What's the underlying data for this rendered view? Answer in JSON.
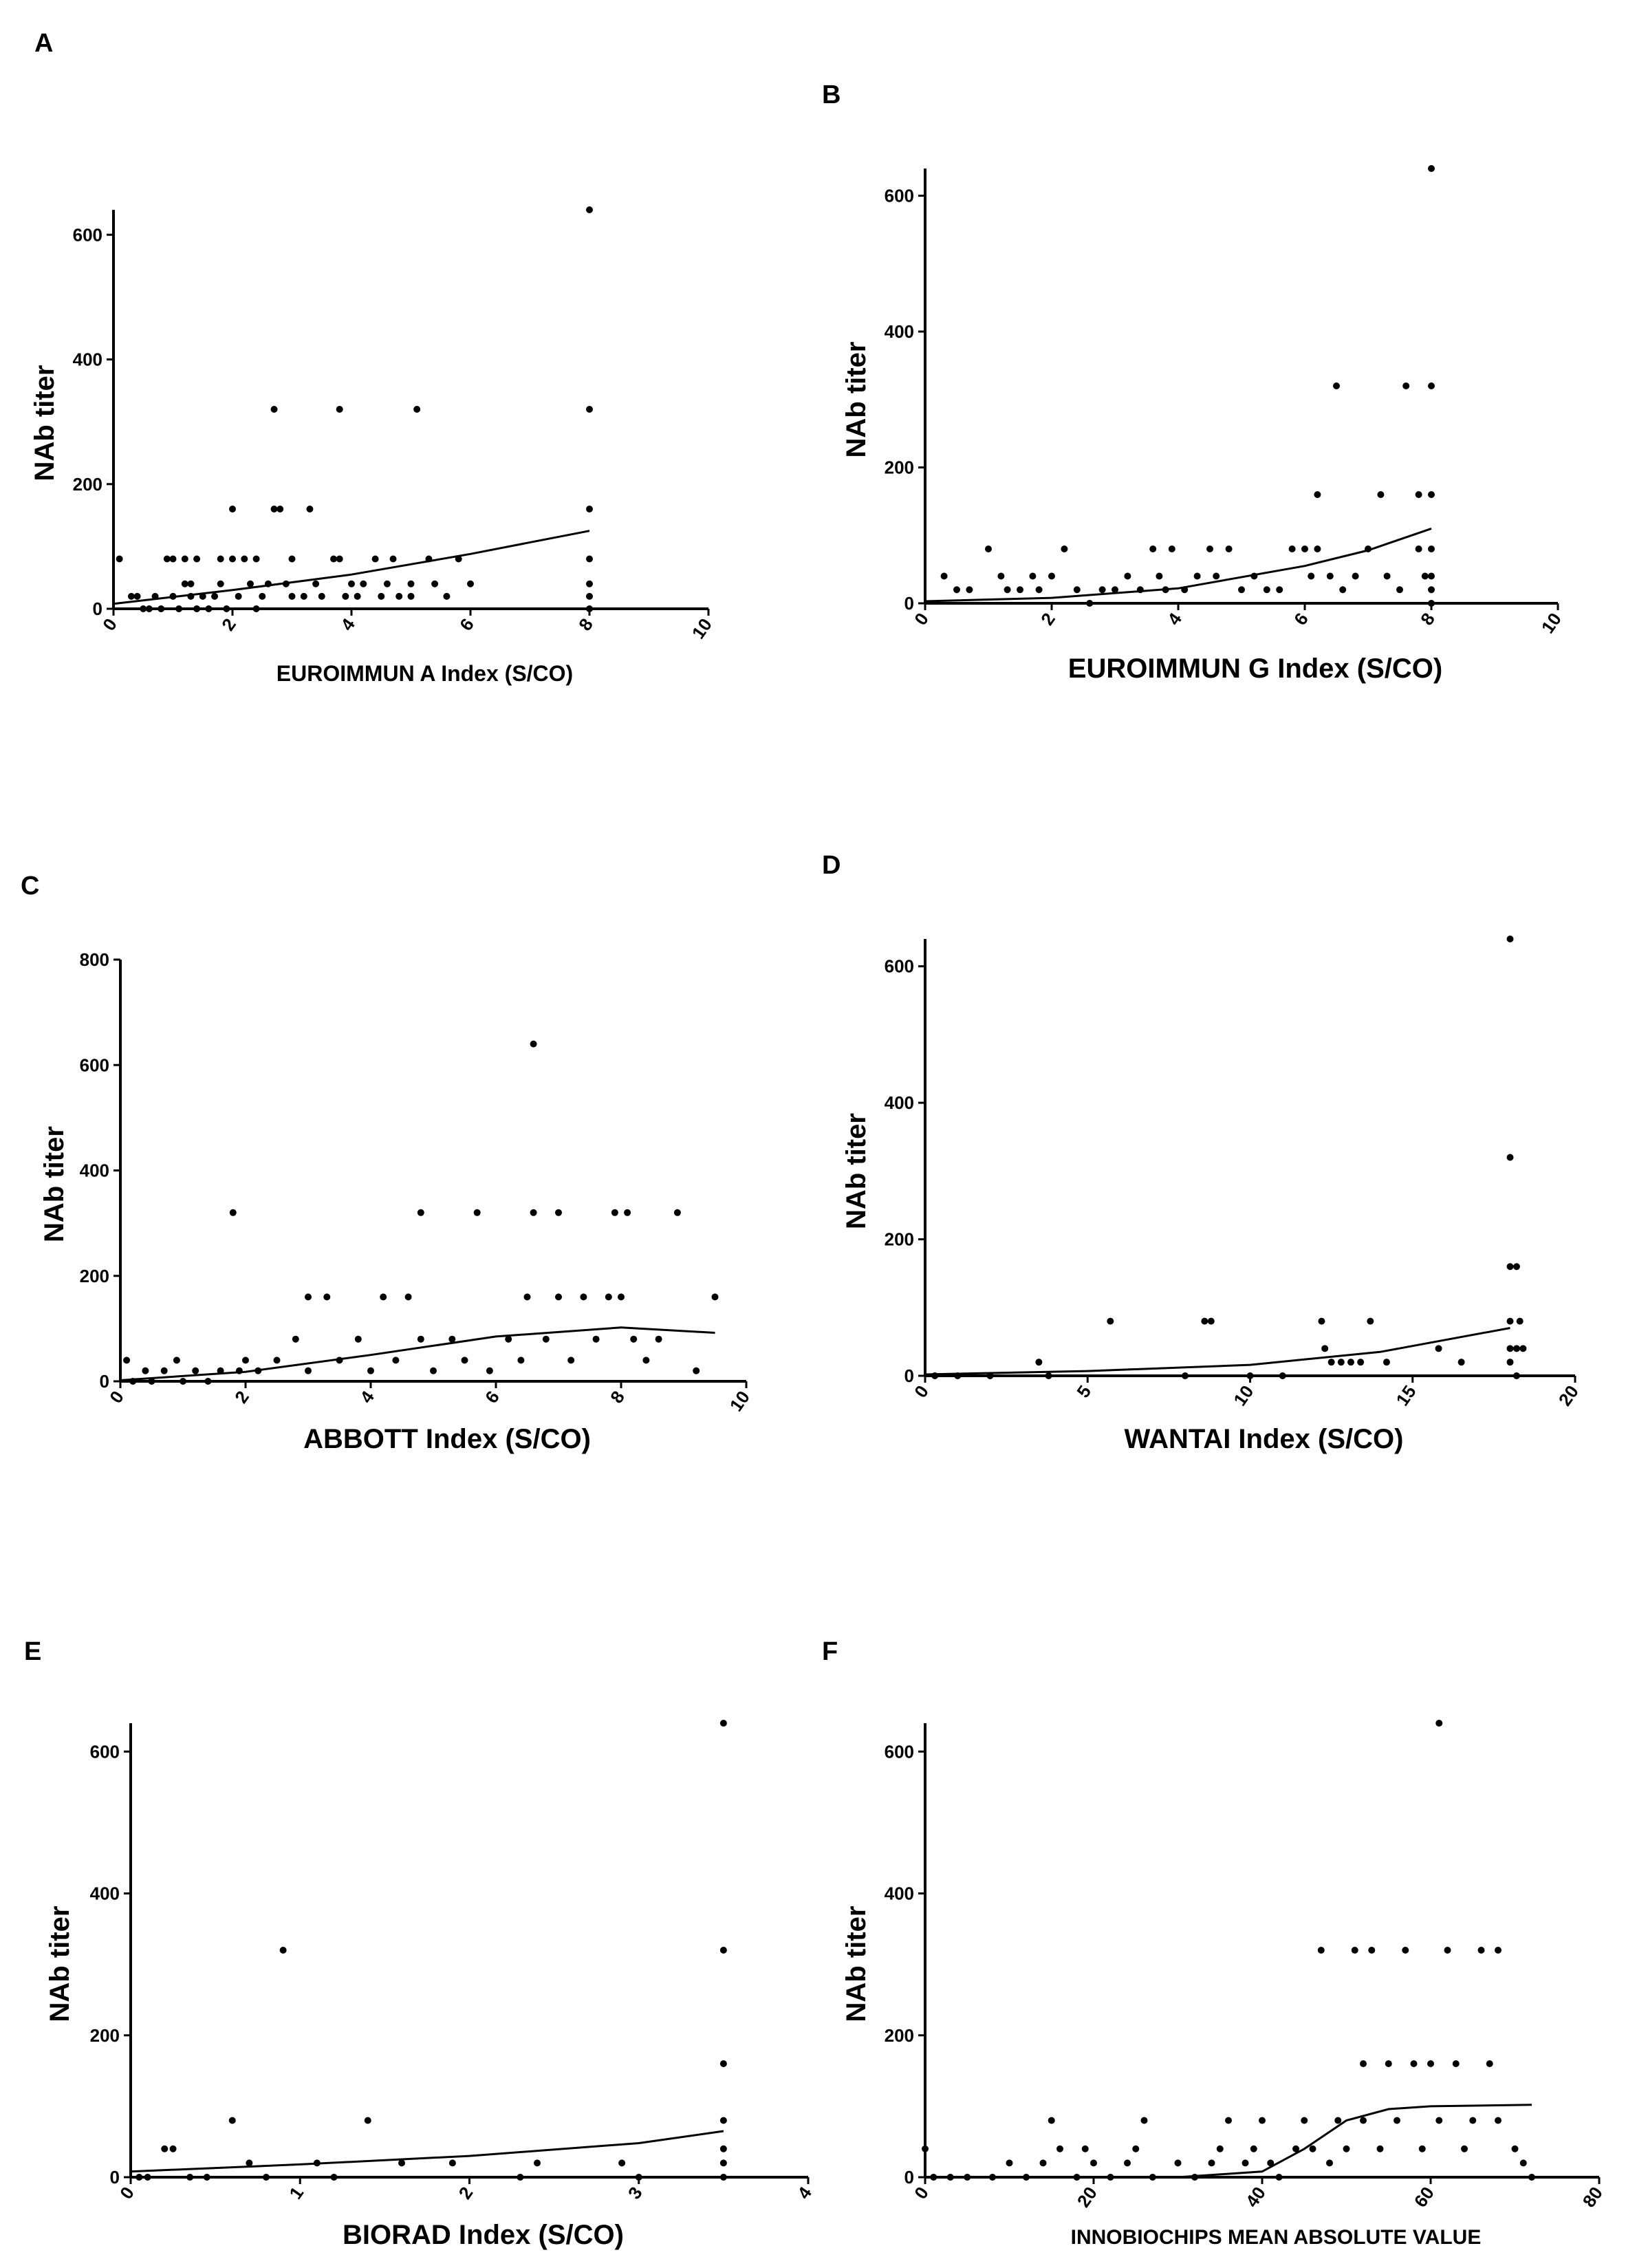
{
  "chart_data": [
    {
      "panel": "A",
      "type": "scatter",
      "xlabel": "EUROIMMUN A Index (S/CO)",
      "ylabel": "NAb titer",
      "xlim": [
        0,
        10
      ],
      "ylim": [
        0,
        640
      ],
      "xticks": [
        0,
        2,
        4,
        6,
        8,
        10
      ],
      "yticks": [
        0,
        200,
        400,
        600
      ],
      "points": [
        [
          0.1,
          80
        ],
        [
          0.3,
          20
        ],
        [
          0.4,
          20
        ],
        [
          0.5,
          0
        ],
        [
          0.6,
          0
        ],
        [
          0.7,
          20
        ],
        [
          0.8,
          0
        ],
        [
          0.9,
          80
        ],
        [
          1.0,
          80
        ],
        [
          1.0,
          20
        ],
        [
          1.1,
          0
        ],
        [
          1.2,
          80
        ],
        [
          1.2,
          40
        ],
        [
          1.3,
          20
        ],
        [
          1.3,
          40
        ],
        [
          1.4,
          0
        ],
        [
          1.4,
          80
        ],
        [
          1.5,
          20
        ],
        [
          1.6,
          0
        ],
        [
          1.7,
          20
        ],
        [
          1.8,
          80
        ],
        [
          1.8,
          40
        ],
        [
          1.9,
          0
        ],
        [
          2.0,
          80
        ],
        [
          2.0,
          160
        ],
        [
          2.1,
          20
        ],
        [
          2.2,
          80
        ],
        [
          2.3,
          40
        ],
        [
          2.4,
          0
        ],
        [
          2.4,
          80
        ],
        [
          2.5,
          20
        ],
        [
          2.6,
          40
        ],
        [
          2.7,
          320
        ],
        [
          2.7,
          160
        ],
        [
          2.8,
          160
        ],
        [
          2.9,
          40
        ],
        [
          3.0,
          80
        ],
        [
          3.0,
          20
        ],
        [
          3.2,
          20
        ],
        [
          3.3,
          160
        ],
        [
          3.4,
          40
        ],
        [
          3.5,
          20
        ],
        [
          3.7,
          80
        ],
        [
          3.8,
          320
        ],
        [
          3.8,
          80
        ],
        [
          3.9,
          20
        ],
        [
          4.0,
          40
        ],
        [
          4.1,
          20
        ],
        [
          4.2,
          40
        ],
        [
          4.4,
          80
        ],
        [
          4.5,
          20
        ],
        [
          4.6,
          40
        ],
        [
          4.7,
          80
        ],
        [
          4.8,
          20
        ],
        [
          5.0,
          40
        ],
        [
          5.0,
          20
        ],
        [
          5.1,
          320
        ],
        [
          5.3,
          80
        ],
        [
          5.4,
          40
        ],
        [
          5.6,
          20
        ],
        [
          5.8,
          80
        ],
        [
          6.0,
          40
        ],
        [
          8.0,
          640
        ],
        [
          8.0,
          320
        ],
        [
          8.0,
          160
        ],
        [
          8.0,
          80
        ],
        [
          8.0,
          40
        ],
        [
          8.0,
          20
        ],
        [
          8.0,
          0
        ]
      ],
      "fit_curve": [
        [
          0,
          8
        ],
        [
          2,
          30
        ],
        [
          4,
          55
        ],
        [
          6,
          88
        ],
        [
          8,
          125
        ]
      ]
    },
    {
      "panel": "B",
      "type": "scatter",
      "xlabel": "EUROIMMUN G Index (S/CO)",
      "ylabel": "NAb titer",
      "xlim": [
        0,
        10
      ],
      "ylim": [
        0,
        640
      ],
      "xticks": [
        0,
        2,
        4,
        6,
        8,
        10
      ],
      "yticks": [
        0,
        200,
        400,
        600
      ],
      "points": [
        [
          0.3,
          40
        ],
        [
          0.5,
          20
        ],
        [
          0.7,
          20
        ],
        [
          1.0,
          80
        ],
        [
          1.2,
          40
        ],
        [
          1.3,
          20
        ],
        [
          1.5,
          20
        ],
        [
          1.7,
          40
        ],
        [
          1.8,
          20
        ],
        [
          2.0,
          40
        ],
        [
          2.2,
          80
        ],
        [
          2.4,
          20
        ],
        [
          2.6,
          0
        ],
        [
          2.8,
          20
        ],
        [
          3.0,
          20
        ],
        [
          3.2,
          40
        ],
        [
          3.4,
          20
        ],
        [
          3.6,
          80
        ],
        [
          3.7,
          40
        ],
        [
          3.8,
          20
        ],
        [
          3.9,
          80
        ],
        [
          4.1,
          20
        ],
        [
          4.3,
          40
        ],
        [
          4.5,
          80
        ],
        [
          4.6,
          40
        ],
        [
          4.8,
          80
        ],
        [
          5.0,
          20
        ],
        [
          5.2,
          40
        ],
        [
          5.4,
          20
        ],
        [
          5.6,
          20
        ],
        [
          5.8,
          80
        ],
        [
          6.0,
          80
        ],
        [
          6.1,
          40
        ],
        [
          6.2,
          160
        ],
        [
          6.2,
          80
        ],
        [
          6.4,
          40
        ],
        [
          6.5,
          320
        ],
        [
          6.6,
          20
        ],
        [
          6.8,
          40
        ],
        [
          7.0,
          80
        ],
        [
          7.2,
          160
        ],
        [
          7.3,
          40
        ],
        [
          7.5,
          20
        ],
        [
          7.6,
          320
        ],
        [
          7.8,
          160
        ],
        [
          7.8,
          80
        ],
        [
          7.9,
          40
        ],
        [
          8.0,
          640
        ],
        [
          8.0,
          320
        ],
        [
          8.0,
          160
        ],
        [
          8.0,
          80
        ],
        [
          8.0,
          40
        ],
        [
          8.0,
          20
        ],
        [
          8.0,
          0
        ]
      ],
      "fit_curve": [
        [
          0,
          3
        ],
        [
          2,
          8
        ],
        [
          4,
          22
        ],
        [
          6,
          55
        ],
        [
          7,
          78
        ],
        [
          8,
          110
        ]
      ]
    },
    {
      "panel": "C",
      "type": "scatter",
      "xlabel": "ABBOTT Index (S/CO)",
      "ylabel": "NAb titer",
      "xlim": [
        0,
        10
      ],
      "ylim": [
        0,
        800
      ],
      "xticks": [
        0,
        2,
        4,
        6,
        8,
        10
      ],
      "yticks": [
        0,
        200,
        400,
        600,
        800
      ],
      "points": [
        [
          0.1,
          40
        ],
        [
          0.2,
          0
        ],
        [
          0.4,
          20
        ],
        [
          0.5,
          0
        ],
        [
          0.7,
          20
        ],
        [
          0.9,
          40
        ],
        [
          1.0,
          0
        ],
        [
          1.2,
          20
        ],
        [
          1.4,
          0
        ],
        [
          1.6,
          20
        ],
        [
          1.8,
          320
        ],
        [
          1.9,
          20
        ],
        [
          2.0,
          40
        ],
        [
          2.2,
          20
        ],
        [
          2.5,
          40
        ],
        [
          2.8,
          80
        ],
        [
          3.0,
          160
        ],
        [
          3.0,
          20
        ],
        [
          3.3,
          160
        ],
        [
          3.5,
          40
        ],
        [
          3.8,
          80
        ],
        [
          4.0,
          20
        ],
        [
          4.2,
          160
        ],
        [
          4.4,
          40
        ],
        [
          4.6,
          160
        ],
        [
          4.8,
          320
        ],
        [
          4.8,
          80
        ],
        [
          5.0,
          20
        ],
        [
          5.3,
          80
        ],
        [
          5.5,
          40
        ],
        [
          5.7,
          320
        ],
        [
          5.9,
          20
        ],
        [
          6.2,
          80
        ],
        [
          6.4,
          40
        ],
        [
          6.5,
          160
        ],
        [
          6.6,
          640
        ],
        [
          6.6,
          320
        ],
        [
          6.8,
          80
        ],
        [
          7.0,
          320
        ],
        [
          7.0,
          160
        ],
        [
          7.2,
          40
        ],
        [
          7.4,
          160
        ],
        [
          7.6,
          80
        ],
        [
          7.8,
          160
        ],
        [
          7.9,
          320
        ],
        [
          8.1,
          320
        ],
        [
          8.0,
          160
        ],
        [
          8.2,
          80
        ],
        [
          8.4,
          40
        ],
        [
          8.6,
          80
        ],
        [
          8.9,
          320
        ],
        [
          9.2,
          20
        ],
        [
          9.5,
          160
        ]
      ],
      "fit_curve": [
        [
          0,
          2
        ],
        [
          2,
          18
        ],
        [
          4,
          50
        ],
        [
          6,
          85
        ],
        [
          8,
          102
        ],
        [
          9.5,
          92
        ]
      ]
    },
    {
      "panel": "D",
      "type": "scatter",
      "xlabel": "WANTAI Index (S/CO)",
      "ylabel": "NAb titer",
      "xlim": [
        0,
        20
      ],
      "ylim": [
        0,
        640
      ],
      "xticks": [
        0,
        5,
        10,
        15,
        20
      ],
      "yticks": [
        0,
        200,
        400,
        600
      ],
      "points": [
        [
          0.3,
          0
        ],
        [
          1.0,
          0
        ],
        [
          2.0,
          0
        ],
        [
          3.5,
          20
        ],
        [
          3.8,
          0
        ],
        [
          5.7,
          80
        ],
        [
          8.0,
          0
        ],
        [
          8.6,
          80
        ],
        [
          8.8,
          80
        ],
        [
          10.0,
          0
        ],
        [
          11.0,
          0
        ],
        [
          12.2,
          80
        ],
        [
          12.3,
          40
        ],
        [
          12.5,
          20
        ],
        [
          12.8,
          20
        ],
        [
          13.1,
          20
        ],
        [
          13.4,
          20
        ],
        [
          13.7,
          80
        ],
        [
          14.2,
          20
        ],
        [
          15.8,
          40
        ],
        [
          16.5,
          20
        ],
        [
          18.0,
          640
        ],
        [
          18.0,
          320
        ],
        [
          18.0,
          160
        ],
        [
          18.2,
          160
        ],
        [
          18.0,
          80
        ],
        [
          18.3,
          80
        ],
        [
          18.0,
          40
        ],
        [
          18.2,
          40
        ],
        [
          18.4,
          40
        ],
        [
          18.0,
          20
        ],
        [
          18.2,
          0
        ]
      ],
      "fit_curve": [
        [
          0,
          2
        ],
        [
          5,
          7
        ],
        [
          10,
          16
        ],
        [
          14,
          35
        ],
        [
          18,
          70
        ]
      ]
    },
    {
      "panel": "E",
      "type": "scatter",
      "xlabel": "BIORAD Index (S/CO)",
      "ylabel": "NAb titer",
      "xlim": [
        0,
        4
      ],
      "ylim": [
        0,
        640
      ],
      "xticks": [
        0,
        1,
        2,
        3,
        4
      ],
      "yticks": [
        0,
        200,
        400,
        600
      ],
      "points": [
        [
          0.05,
          0
        ],
        [
          0.1,
          0
        ],
        [
          0.2,
          40
        ],
        [
          0.25,
          40
        ],
        [
          0.35,
          0
        ],
        [
          0.45,
          0
        ],
        [
          0.6,
          80
        ],
        [
          0.7,
          20
        ],
        [
          0.8,
          0
        ],
        [
          0.9,
          320
        ],
        [
          1.1,
          20
        ],
        [
          1.2,
          0
        ],
        [
          1.4,
          80
        ],
        [
          1.6,
          20
        ],
        [
          1.9,
          20
        ],
        [
          2.3,
          0
        ],
        [
          2.4,
          20
        ],
        [
          2.9,
          20
        ],
        [
          3.0,
          0
        ],
        [
          3.5,
          640
        ],
        [
          3.5,
          320
        ],
        [
          3.5,
          160
        ],
        [
          3.5,
          80
        ],
        [
          3.5,
          40
        ],
        [
          3.5,
          20
        ],
        [
          3.5,
          0
        ]
      ],
      "fit_curve": [
        [
          0,
          8
        ],
        [
          1,
          18
        ],
        [
          2,
          30
        ],
        [
          3,
          48
        ],
        [
          3.5,
          65
        ]
      ]
    },
    {
      "panel": "F",
      "type": "scatter",
      "xlabel": "INNOBIOCHIPS MEAN ABSOLUTE VALUE",
      "ylabel": "NAb titer",
      "xlim": [
        0,
        80
      ],
      "ylim": [
        0,
        640
      ],
      "xticks": [
        0,
        20,
        40,
        60,
        80
      ],
      "yticks": [
        0,
        200,
        400,
        600
      ],
      "points": [
        [
          0,
          40
        ],
        [
          1,
          0
        ],
        [
          3,
          0
        ],
        [
          5,
          0
        ],
        [
          8,
          0
        ],
        [
          10,
          20
        ],
        [
          12,
          0
        ],
        [
          14,
          20
        ],
        [
          15,
          80
        ],
        [
          16,
          40
        ],
        [
          18,
          0
        ],
        [
          19,
          40
        ],
        [
          20,
          20
        ],
        [
          22,
          0
        ],
        [
          24,
          20
        ],
        [
          25,
          40
        ],
        [
          26,
          80
        ],
        [
          27,
          0
        ],
        [
          30,
          20
        ],
        [
          32,
          0
        ],
        [
          34,
          20
        ],
        [
          35,
          40
        ],
        [
          36,
          80
        ],
        [
          38,
          20
        ],
        [
          39,
          40
        ],
        [
          40,
          80
        ],
        [
          41,
          20
        ],
        [
          42,
          0
        ],
        [
          44,
          40
        ],
        [
          45,
          80
        ],
        [
          46,
          40
        ],
        [
          47,
          320
        ],
        [
          48,
          20
        ],
        [
          49,
          80
        ],
        [
          50,
          40
        ],
        [
          51,
          320
        ],
        [
          52,
          160
        ],
        [
          52,
          80
        ],
        [
          53,
          320
        ],
        [
          54,
          40
        ],
        [
          55,
          160
        ],
        [
          56,
          80
        ],
        [
          57,
          320
        ],
        [
          58,
          160
        ],
        [
          59,
          40
        ],
        [
          60,
          160
        ],
        [
          61,
          640
        ],
        [
          61,
          80
        ],
        [
          62,
          320
        ],
        [
          63,
          160
        ],
        [
          64,
          40
        ],
        [
          65,
          80
        ],
        [
          66,
          320
        ],
        [
          67,
          160
        ],
        [
          68,
          320
        ],
        [
          68,
          80
        ],
        [
          70,
          40
        ],
        [
          71,
          20
        ],
        [
          72,
          0
        ]
      ],
      "fit_curve": [
        [
          30,
          0
        ],
        [
          40,
          8
        ],
        [
          45,
          40
        ],
        [
          50,
          80
        ],
        [
          55,
          96
        ],
        [
          60,
          100
        ],
        [
          72,
          102
        ]
      ]
    }
  ]
}
